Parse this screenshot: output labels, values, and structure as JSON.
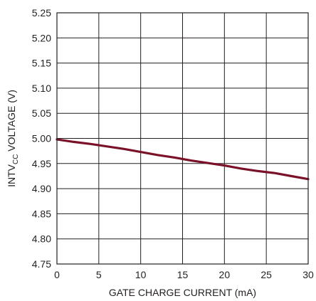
{
  "chart_data": {
    "type": "line",
    "title": "",
    "xlabel": "GATE CHARGE CURRENT (mA)",
    "ylabel": {
      "prefix": "INTV",
      "sub": "CC",
      "suffix": " VOLTAGE (V)"
    },
    "xlim": [
      0,
      30
    ],
    "ylim": [
      4.75,
      5.25
    ],
    "xticks": [
      "0",
      "5",
      "10",
      "15",
      "20",
      "25",
      "30"
    ],
    "yticks": [
      "4.75",
      "4.80",
      "4.85",
      "4.90",
      "4.95",
      "5.00",
      "5.05",
      "5.10",
      "5.15",
      "5.20",
      "5.25"
    ],
    "grid": true,
    "legend": "none",
    "line_color": "#7b1128",
    "series": [
      {
        "x": [
          0,
          2,
          4,
          6,
          8,
          10,
          12,
          14,
          16,
          18,
          20,
          22,
          24,
          26,
          28,
          30
        ],
        "values": [
          4.998,
          4.993,
          4.989,
          4.984,
          4.979,
          4.973,
          4.967,
          4.962,
          4.956,
          4.951,
          4.946,
          4.94,
          4.935,
          4.931,
          4.925,
          4.919
        ]
      }
    ]
  }
}
